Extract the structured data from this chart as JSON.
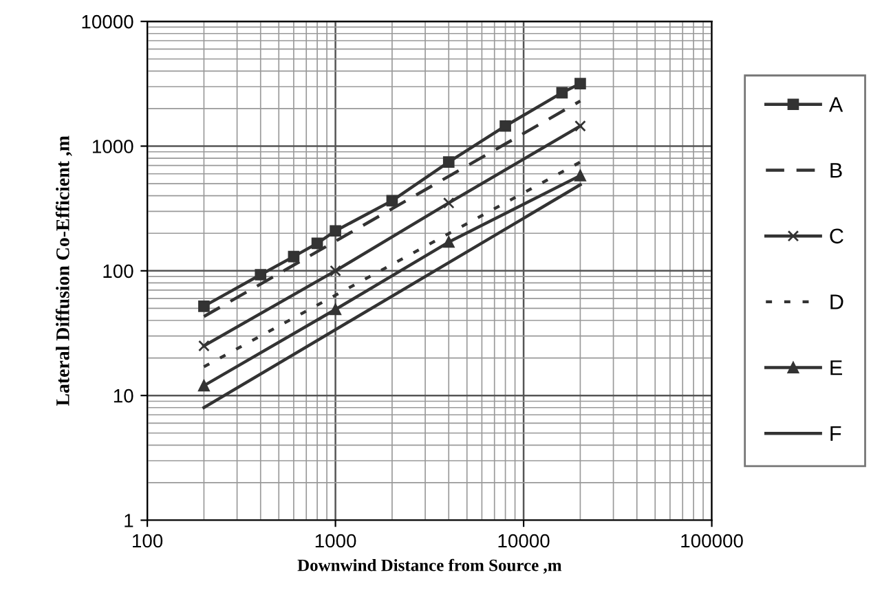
{
  "chart_data": {
    "type": "line",
    "xlabel": "Downwind Distance from Source ,m",
    "ylabel": "Lateral Diffusion Co-Efficient ,m",
    "log": "xy",
    "xlim": [
      100,
      100000
    ],
    "ylim": [
      1,
      10000
    ],
    "xticks": [
      100,
      1000,
      10000,
      100000
    ],
    "yticks": [
      1,
      10,
      100,
      1000,
      10000
    ],
    "grid": true,
    "legend": "right",
    "series": [
      {
        "name": "A",
        "color": "#333333",
        "marker": "square",
        "line_style": "solid",
        "x": [
          200,
          400,
          600,
          800,
          1000,
          2000,
          4000,
          8000,
          16000,
          20000
        ],
        "values": [
          52,
          93,
          130,
          166,
          209,
          365,
          745,
          1450,
          2680,
          3170
        ]
      },
      {
        "name": "B",
        "color": "#333333",
        "marker": "none",
        "line_style": "dashed",
        "x": [
          200,
          20000
        ],
        "values": [
          43,
          2300
        ]
      },
      {
        "name": "C",
        "color": "#333333",
        "marker": "cross",
        "line_style": "solid",
        "x": [
          200,
          1000,
          4000,
          20000
        ],
        "values": [
          25,
          100,
          350,
          1450
        ]
      },
      {
        "name": "D",
        "color": "#333333",
        "marker": "none",
        "line_style": "dotted",
        "x": [
          200,
          20000
        ],
        "values": [
          17,
          745
        ]
      },
      {
        "name": "E",
        "color": "#333333",
        "marker": "triangle",
        "line_style": "solid",
        "x": [
          200,
          1000,
          4000,
          20000
        ],
        "values": [
          12,
          49,
          170,
          580
        ]
      },
      {
        "name": "F",
        "color": "#333333",
        "marker": "none",
        "line_style": "solid",
        "x": [
          200,
          20000
        ],
        "values": [
          8,
          490
        ]
      }
    ]
  }
}
